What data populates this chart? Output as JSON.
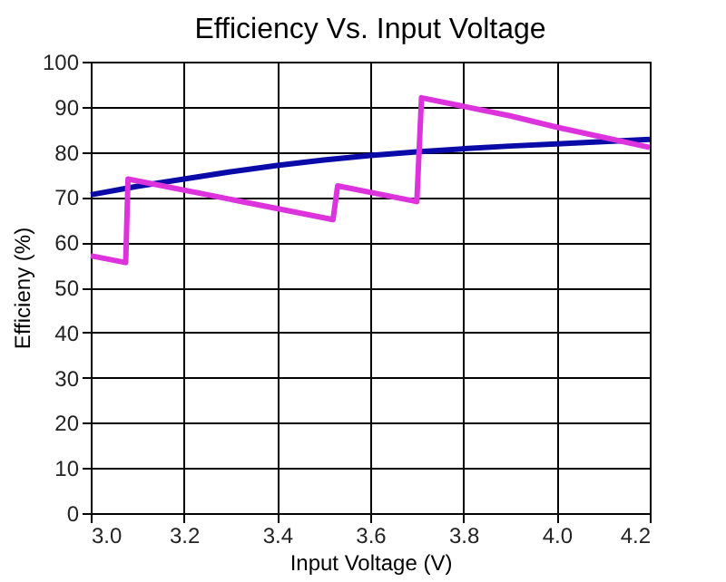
{
  "chart_data": {
    "type": "line",
    "title": "Efficiency Vs. Input Voltage",
    "xlabel": "Input Voltage (V)",
    "ylabel": "Efficieny (%)",
    "xlim": [
      3.0,
      4.2
    ],
    "xticks": [
      {
        "value": 3.0,
        "label": "3.0"
      },
      3.2,
      3.4,
      3.6,
      3.8,
      {
        "value": 4.0,
        "label": "4.0"
      },
      4.2
    ],
    "ylim": [
      0,
      100
    ],
    "yticks": [
      0,
      10,
      20,
      30,
      40,
      50,
      60,
      70,
      80,
      90,
      100
    ],
    "grid": true,
    "marker": "none",
    "line_style": "solid",
    "series": [
      {
        "color": "#0a0aa8",
        "x": [
          3.0,
          3.1,
          3.2,
          3.3,
          3.4,
          3.5,
          3.6,
          3.7,
          3.8,
          3.9,
          4.0,
          4.1,
          4.2
        ],
        "values": [
          70.5,
          72.4,
          74,
          75.6,
          77,
          78.2,
          79.2,
          80,
          80.7,
          81.3,
          81.8,
          82.3,
          82.8
        ]
      },
      {
        "color": "#dd33dd",
        "x": [
          3.0,
          3.075,
          3.08,
          3.52,
          3.53,
          3.7,
          3.71,
          3.9,
          4.0,
          4.2
        ],
        "values": [
          57,
          55.5,
          74,
          65,
          72.5,
          69,
          92,
          88,
          85.5,
          81
        ]
      }
    ]
  }
}
